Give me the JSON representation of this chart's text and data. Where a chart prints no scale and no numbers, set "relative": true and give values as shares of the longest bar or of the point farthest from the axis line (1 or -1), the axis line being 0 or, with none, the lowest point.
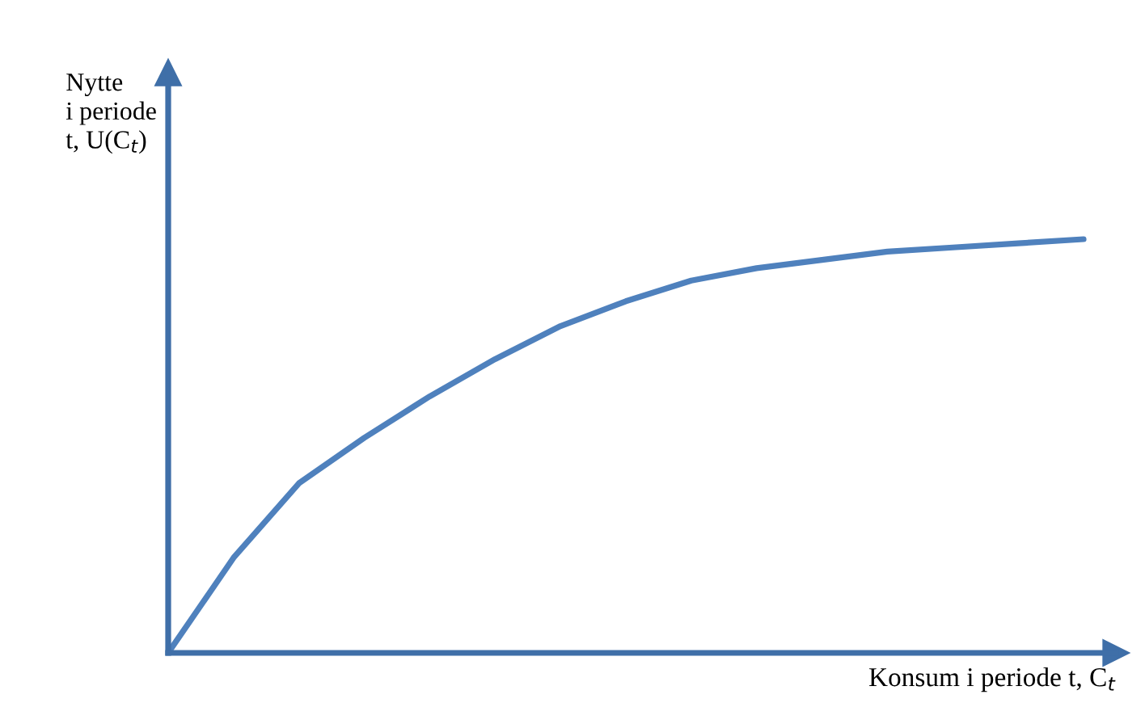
{
  "chart_data": {
    "type": "line",
    "relative": true,
    "xlabel": "Konsum i periode t, C$_{t}$",
    "ylabel": "Nytte\ni periode\nt, U(C$_{t}$)",
    "categories": [
      null,
      null,
      null,
      null,
      null,
      null,
      null,
      null,
      null,
      null,
      null,
      null,
      null,
      null,
      null
    ],
    "series": [
      {
        "color": "#4f81bd",
        "values": [
          0,
          0.23,
          0.41,
          0.52,
          0.62,
          0.71,
          0.79,
          0.85,
          0.9,
          0.93,
          0.95,
          0.97,
          0.98,
          0.99,
          1.0
        ]
      }
    ],
    "grid": false,
    "legend": false,
    "marker": "none",
    "line_style": "solid"
  }
}
